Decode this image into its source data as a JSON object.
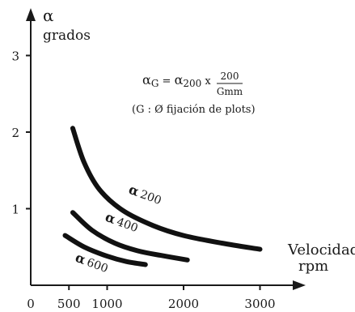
{
  "chart_data": {
    "type": "line",
    "y_axis": {
      "symbol": "α",
      "unit": "grados",
      "ticks": [
        "3",
        "2",
        "1"
      ],
      "tick_values": [
        3,
        2,
        1
      ]
    },
    "x_axis": {
      "label_line1": "Velocidad",
      "label_line2": "rpm",
      "ticks": [
        "0",
        "500",
        "1000",
        "2000",
        "3000"
      ],
      "tick_values": [
        0,
        500,
        1000,
        2000,
        3000
      ]
    },
    "xlim": [
      0,
      3200
    ],
    "ylim": [
      0,
      3.4
    ],
    "formula": {
      "lhs_symbol": "α",
      "lhs_sub": "G",
      "eq": " = ",
      "rhs_symbol": "α",
      "rhs_sub": "200",
      "times": " x ",
      "numerator": "200",
      "denominator": "Gmm",
      "note": "(G : Ø fijación de plots)"
    },
    "series": [
      {
        "name": "α 200",
        "label_symbol": "α",
        "label_value": "200",
        "x": [
          550,
          700,
          900,
          1200,
          1600,
          2000,
          2500,
          3000
        ],
        "y": [
          2.05,
          1.6,
          1.25,
          0.98,
          0.78,
          0.65,
          0.55,
          0.47
        ]
      },
      {
        "name": "α 400",
        "label_symbol": "α",
        "label_value": "400",
        "x": [
          550,
          800,
          1100,
          1400,
          1700,
          2050
        ],
        "y": [
          0.95,
          0.72,
          0.55,
          0.45,
          0.39,
          0.33
        ]
      },
      {
        "name": "α 600",
        "label_symbol": "α",
        "label_value": "600",
        "x": [
          450,
          700,
          1000,
          1250,
          1500
        ],
        "y": [
          0.65,
          0.5,
          0.38,
          0.31,
          0.27
        ]
      }
    ]
  }
}
